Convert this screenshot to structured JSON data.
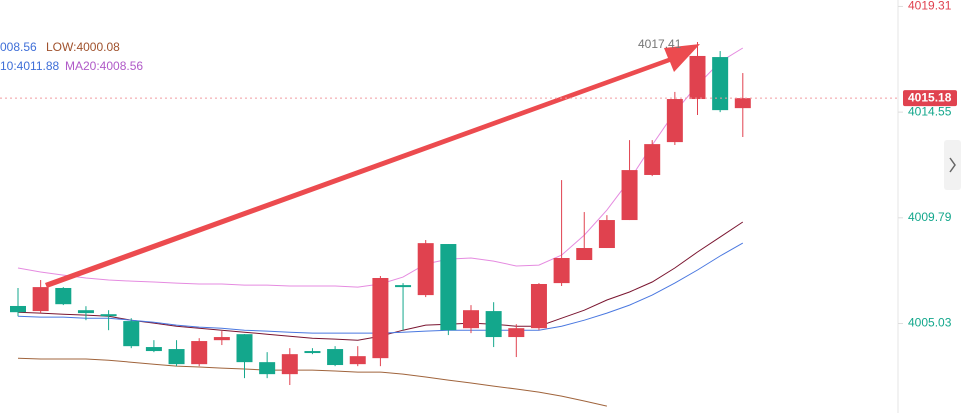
{
  "chart_data": {
    "type": "candlestick",
    "legend_texts": [
      {
        "text": "008.56",
        "color": "#3f6fd8"
      },
      {
        "text": "LOW:4000.08",
        "color": "#a0522d"
      },
      {
        "text": "10:4011.88",
        "color": "#3f6fd8"
      },
      {
        "text": "MA20:4008.56",
        "color": "#b05ac8"
      }
    ],
    "annotation": "4017.41",
    "last_price": 4015.18,
    "ylim": [
      4001.0,
      4019.6
    ],
    "yticks": [
      4019.31,
      4014.55,
      4009.79,
      4005.03
    ],
    "up_color": "#e0424f",
    "down_color": "#13a78c",
    "candles": {
      "open": [
        4005.82,
        4005.59,
        4006.63,
        4005.63,
        4005.45,
        4005.14,
        4003.97,
        4003.88,
        4003.2,
        4004.28,
        4004.55,
        4003.29,
        4002.75,
        4003.79,
        4003.88,
        4003.2,
        4003.47,
        4006.76,
        4006.31,
        4008.61,
        4004.82,
        4005.59,
        4004.42,
        4004.82,
        4006.85,
        4007.89,
        4008.43,
        4009.69,
        4011.72,
        4013.2,
        4015.14,
        4017.03,
        4014.73
      ],
      "close": [
        4005.54,
        4006.67,
        4005.9,
        4005.5,
        4005.36,
        4004.01,
        4003.79,
        4003.2,
        4004.24,
        4004.42,
        4003.29,
        4002.75,
        4003.65,
        4003.7,
        4003.16,
        4003.56,
        4007.08,
        4006.67,
        4008.65,
        4004.73,
        4005.63,
        4004.42,
        4004.82,
        4006.81,
        4007.98,
        4008.43,
        4009.69,
        4011.94,
        4013.11,
        4015.14,
        4017.08,
        4014.64,
        4015.18
      ],
      "high": [
        4006.63,
        4006.99,
        4006.67,
        4005.81,
        4005.63,
        4005.27,
        4004.28,
        4004.28,
        4004.37,
        4004.69,
        4004.55,
        4003.74,
        4003.92,
        4003.92,
        4004.01,
        4004.01,
        4007.17,
        4006.85,
        4008.79,
        4008.61,
        4005.86,
        4005.99,
        4005.0,
        4006.85,
        4011.49,
        4010.05,
        4009.91,
        4013.29,
        4013.29,
        4015.46,
        4017.71,
        4017.3,
        4016.31
      ],
      "low": [
        4005.36,
        4005.5,
        4005.86,
        4005.18,
        4004.73,
        4003.92,
        4003.74,
        4003.11,
        4003.11,
        4004.06,
        4002.57,
        4002.57,
        4002.26,
        4003.65,
        4003.11,
        4003.11,
        4003.11,
        4004.73,
        4006.22,
        4004.51,
        4004.6,
        4003.97,
        4003.52,
        4004.73,
        4006.72,
        4007.89,
        4008.43,
        4009.69,
        4011.67,
        4013.07,
        4014.42,
        4014.55,
        4013.43
      ]
    },
    "series": [
      {
        "color": "#e58be0",
        "values": [
          4007.53,
          4007.35,
          4007.21,
          4007.08,
          4006.99,
          4006.94,
          4006.9,
          4006.85,
          4006.81,
          4006.81,
          4006.76,
          4006.76,
          4006.72,
          4006.72,
          4006.72,
          4006.67,
          4006.81,
          4007.12,
          4007.71,
          4007.93,
          4007.98,
          4007.84,
          4007.62,
          4007.66,
          4008.11,
          4009.01,
          4010.14,
          4011.49,
          4013.07,
          4014.55,
          4015.77,
          4016.81,
          4017.44
        ]
      },
      {
        "color": "#7a1530",
        "values": [
          4005.54,
          4005.5,
          4005.45,
          4005.41,
          4005.36,
          4005.18,
          4005.05,
          4004.91,
          4004.82,
          4004.73,
          4004.64,
          4004.55,
          4004.46,
          4004.37,
          4004.33,
          4004.28,
          4004.46,
          4004.73,
          4004.96,
          4005.0,
          4005.05,
          4005.0,
          4004.91,
          4004.91,
          4005.27,
          4005.63,
          4006.09,
          4006.45,
          4006.9,
          4007.53,
          4008.25,
          4008.92,
          4009.6
        ]
      },
      {
        "color": "#4a78e0",
        "values": [
          4005.36,
          4005.32,
          4005.32,
          4005.27,
          4005.27,
          4005.18,
          4005.09,
          4004.96,
          4004.87,
          4004.82,
          4004.73,
          4004.69,
          4004.64,
          4004.6,
          4004.6,
          4004.6,
          4004.6,
          4004.64,
          4004.69,
          4004.73,
          4004.73,
          4004.73,
          4004.73,
          4004.73,
          4004.91,
          4005.18,
          4005.5,
          4005.86,
          4006.31,
          4006.85,
          4007.44,
          4008.07,
          4008.65
        ]
      },
      {
        "color": "#a0643c",
        "values": [
          4003.47,
          4003.43,
          4003.43,
          4003.43,
          4003.38,
          4003.29,
          4003.2,
          4003.11,
          4003.07,
          4003.02,
          4002.98,
          4002.93,
          4002.93,
          4002.93,
          4002.89,
          4002.84,
          4002.84,
          4002.75,
          4002.62,
          4002.48,
          4002.35,
          4002.21,
          4002.08,
          4001.94,
          4001.76,
          4001.54,
          4001.31,
          null,
          null,
          null,
          null,
          null,
          null
        ]
      }
    ]
  }
}
